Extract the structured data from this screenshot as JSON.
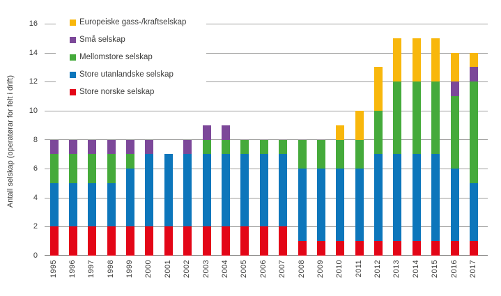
{
  "chart_data": {
    "type": "bar",
    "stacked": true,
    "title": "",
    "xlabel": "",
    "ylabel": "Antall selskap (operatørar for felt i drift)",
    "ylim": [
      0,
      16
    ],
    "ytick_step": 2,
    "grid": true,
    "legend_position": "top-left-inside",
    "categories": [
      "1995",
      "1996",
      "1997",
      "1998",
      "1999",
      "2000",
      "2001",
      "2002",
      "2003",
      "2004",
      "2005",
      "2006",
      "2007",
      "2008",
      "2009",
      "2010",
      "2011",
      "2012",
      "2013",
      "2014",
      "2015",
      "2016",
      "2017"
    ],
    "series": [
      {
        "name": "Store norske selskap",
        "color": "#e30617",
        "values": [
          2,
          2,
          2,
          2,
          2,
          2,
          2,
          2,
          2,
          2,
          2,
          2,
          2,
          1,
          1,
          1,
          1,
          1,
          1,
          1,
          1,
          1,
          1
        ]
      },
      {
        "name": "Store utanlandske selskap",
        "color": "#0d76bb",
        "values": [
          3,
          3,
          3,
          3,
          4,
          5,
          5,
          5,
          5,
          5,
          5,
          5,
          5,
          5,
          5,
          5,
          5,
          6,
          6,
          6,
          6,
          5,
          4
        ]
      },
      {
        "name": "Mellomstore selskap",
        "color": "#45aa3b",
        "values": [
          2,
          2,
          2,
          2,
          1,
          0,
          0,
          0,
          1,
          1,
          1,
          1,
          1,
          2,
          2,
          2,
          2,
          3,
          5,
          5,
          5,
          5,
          7
        ]
      },
      {
        "name": "Små selskap",
        "color": "#7c4899",
        "values": [
          1,
          1,
          1,
          1,
          1,
          1,
          0,
          1,
          1,
          1,
          0,
          0,
          0,
          0,
          0,
          0,
          0,
          0,
          0,
          0,
          0,
          1,
          1
        ]
      },
      {
        "name": "Europeiske gass-/kraftselskap",
        "color": "#f8b70c",
        "values": [
          0,
          0,
          0,
          0,
          0,
          0,
          0,
          0,
          0,
          0,
          0,
          0,
          0,
          0,
          0,
          1,
          2,
          3,
          3,
          3,
          3,
          2,
          1
        ]
      }
    ],
    "totals_by_year": [
      8,
      8,
      8,
      8,
      8,
      8,
      7,
      8,
      9,
      9,
      8,
      8,
      8,
      8,
      8,
      9,
      10,
      13,
      15,
      15,
      15,
      14,
      14
    ]
  },
  "legend": {
    "items": [
      "Europeiske gass-/kraftselskap",
      "Små selskap",
      "Mellomstore selskap",
      "Store utanlandske selskap",
      "Store norske selskap"
    ]
  },
  "colors": {
    "gridline": "#9d9d9c",
    "axis_line": "#706f6e",
    "text": "#3c3c3b",
    "background": "#ffffff"
  }
}
